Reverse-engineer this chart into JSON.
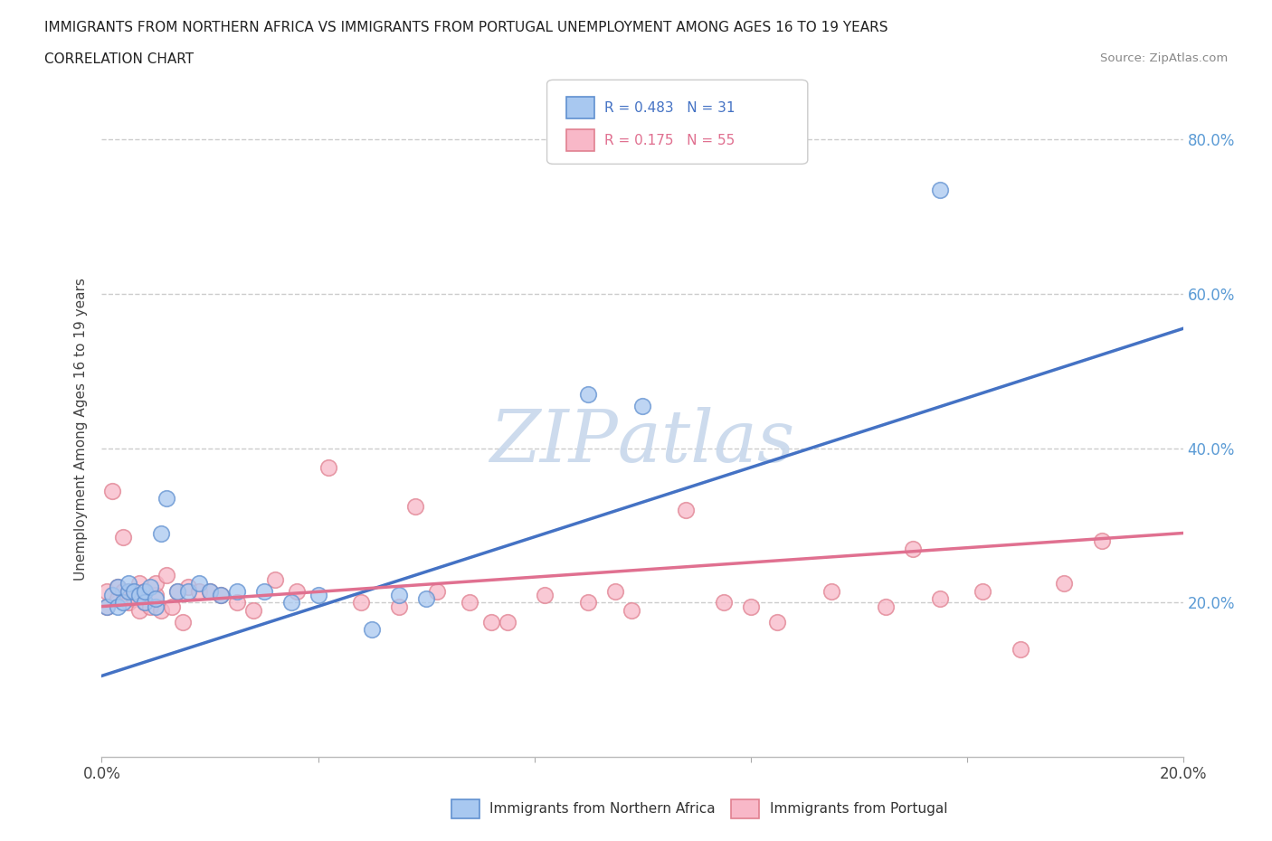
{
  "title_line1": "IMMIGRANTS FROM NORTHERN AFRICA VS IMMIGRANTS FROM PORTUGAL UNEMPLOYMENT AMONG AGES 16 TO 19 YEARS",
  "title_line2": "CORRELATION CHART",
  "source_text": "Source: ZipAtlas.com",
  "ylabel": "Unemployment Among Ages 16 to 19 years",
  "xmin": 0.0,
  "xmax": 0.2,
  "ymin": 0.0,
  "ymax": 0.85,
  "right_yticks": [
    0.2,
    0.4,
    0.6,
    0.8
  ],
  "right_yticklabels": [
    "20.0%",
    "40.0%",
    "60.0%",
    "80.0%"
  ],
  "xticks": [
    0.0,
    0.04,
    0.08,
    0.12,
    0.16,
    0.2
  ],
  "xticklabels": [
    "0.0%",
    "",
    "",
    "",
    "",
    "20.0%"
  ],
  "legend_R1": "R = 0.483",
  "legend_N1": "N = 31",
  "legend_R2": "R = 0.175",
  "legend_N2": "N = 55",
  "color_blue_fill": "#A8C8F0",
  "color_blue_edge": "#6090D0",
  "color_pink_fill": "#F8B8C8",
  "color_pink_edge": "#E08090",
  "color_blue_line": "#4472C4",
  "color_pink_line": "#E07090",
  "color_blue_dash": "#90B8E0",
  "watermark_color": "#C8D8EC",
  "blue_x": [
    0.001,
    0.002,
    0.003,
    0.003,
    0.004,
    0.005,
    0.005,
    0.006,
    0.007,
    0.008,
    0.008,
    0.009,
    0.01,
    0.01,
    0.011,
    0.012,
    0.014,
    0.016,
    0.018,
    0.02,
    0.022,
    0.025,
    0.03,
    0.035,
    0.04,
    0.05,
    0.055,
    0.06,
    0.09,
    0.1,
    0.155
  ],
  "blue_y": [
    0.195,
    0.21,
    0.195,
    0.22,
    0.2,
    0.215,
    0.225,
    0.215,
    0.21,
    0.2,
    0.215,
    0.22,
    0.195,
    0.205,
    0.29,
    0.335,
    0.215,
    0.215,
    0.225,
    0.215,
    0.21,
    0.215,
    0.215,
    0.2,
    0.21,
    0.165,
    0.21,
    0.205,
    0.47,
    0.455,
    0.735
  ],
  "pink_x": [
    0.001,
    0.001,
    0.002,
    0.003,
    0.003,
    0.004,
    0.004,
    0.005,
    0.005,
    0.006,
    0.006,
    0.007,
    0.007,
    0.008,
    0.008,
    0.009,
    0.01,
    0.01,
    0.011,
    0.012,
    0.013,
    0.014,
    0.015,
    0.016,
    0.018,
    0.02,
    0.022,
    0.025,
    0.028,
    0.032,
    0.036,
    0.042,
    0.048,
    0.055,
    0.062,
    0.068,
    0.075,
    0.082,
    0.09,
    0.098,
    0.108,
    0.115,
    0.125,
    0.135,
    0.145,
    0.155,
    0.163,
    0.17,
    0.178,
    0.185,
    0.058,
    0.072,
    0.095,
    0.12,
    0.15
  ],
  "pink_y": [
    0.215,
    0.195,
    0.345,
    0.205,
    0.22,
    0.215,
    0.285,
    0.215,
    0.2,
    0.215,
    0.205,
    0.19,
    0.225,
    0.2,
    0.215,
    0.195,
    0.21,
    0.225,
    0.19,
    0.235,
    0.195,
    0.215,
    0.175,
    0.22,
    0.215,
    0.215,
    0.21,
    0.2,
    0.19,
    0.23,
    0.215,
    0.375,
    0.2,
    0.195,
    0.215,
    0.2,
    0.175,
    0.21,
    0.2,
    0.19,
    0.32,
    0.2,
    0.175,
    0.215,
    0.195,
    0.205,
    0.215,
    0.14,
    0.225,
    0.28,
    0.325,
    0.175,
    0.215,
    0.195,
    0.27
  ],
  "blue_line_x0": 0.0,
  "blue_line_y0": 0.105,
  "blue_line_x1": 0.2,
  "blue_line_y1": 0.555,
  "pink_line_x0": 0.0,
  "pink_line_y0": 0.195,
  "pink_line_x1": 0.2,
  "pink_line_y1": 0.29
}
